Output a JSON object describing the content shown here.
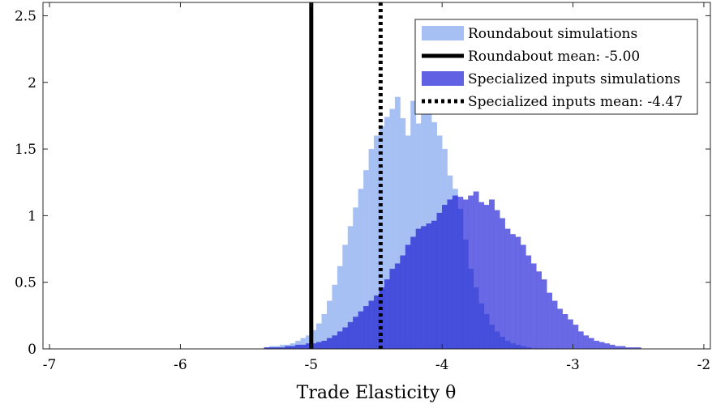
{
  "chart_data": {
    "type": "bar",
    "xlabel": "Trade Elasticity θ",
    "ylabel": "",
    "xlim": [
      -7.05,
      -1.95
    ],
    "ylim": [
      0,
      2.6
    ],
    "x_ticks": [
      -7,
      -6,
      -5,
      -4,
      -3,
      -2
    ],
    "y_ticks": [
      0,
      0.5,
      1,
      1.5,
      2,
      2.5
    ],
    "x_tick_labels": [
      "-7",
      "-6",
      "-5",
      "-4",
      "-3",
      "-2"
    ],
    "y_tick_labels": [
      "0",
      "0.5",
      "1",
      "1.5",
      "2",
      "2.5"
    ],
    "grid": false,
    "legend_position": "top-right",
    "series": [
      {
        "name": "Roundabout simulations",
        "kind": "histogram",
        "color": "#a7c0f4",
        "bin_width": 0.04,
        "bin_start": -6.0,
        "values": [
          0.0,
          0.0,
          0.0,
          0.0,
          0.0,
          0.0,
          0.0,
          0.0,
          0.0,
          0.0,
          0.0,
          0.0,
          0.0,
          0.0,
          0.0,
          0.0,
          0.01,
          0.02,
          0.02,
          0.03,
          0.03,
          0.04,
          0.06,
          0.08,
          0.1,
          0.14,
          0.19,
          0.26,
          0.36,
          0.48,
          0.62,
          0.78,
          0.92,
          1.06,
          1.2,
          1.34,
          1.5,
          1.6,
          1.67,
          1.74,
          1.8,
          1.89,
          1.73,
          1.6,
          1.86,
          1.69,
          1.79,
          1.87,
          1.7,
          1.6,
          1.5,
          1.3,
          1.2,
          1.05,
          0.82,
          0.6,
          0.46,
          0.34,
          0.26,
          0.18,
          0.13,
          0.09,
          0.06,
          0.04,
          0.03,
          0.02,
          0.01,
          0.0
        ]
      },
      {
        "name": "Roundabout mean: -5.00",
        "kind": "vline",
        "x": -5.0,
        "color": "#000000",
        "style": "solid"
      },
      {
        "name": "Specialized inputs simulations",
        "kind": "histogram",
        "color": "#6161e4",
        "bin_width": 0.04,
        "bin_start": -6.0,
        "values": [
          0.0,
          0.0,
          0.0,
          0.0,
          0.0,
          0.0,
          0.0,
          0.0,
          0.0,
          0.0,
          0.0,
          0.0,
          0.0,
          0.0,
          0.0,
          0.0,
          0.01,
          0.01,
          0.01,
          0.01,
          0.02,
          0.02,
          0.03,
          0.03,
          0.04,
          0.04,
          0.05,
          0.06,
          0.08,
          0.1,
          0.13,
          0.16,
          0.2,
          0.24,
          0.28,
          0.32,
          0.36,
          0.4,
          0.46,
          0.52,
          0.6,
          0.64,
          0.7,
          0.78,
          0.84,
          0.9,
          0.92,
          0.94,
          0.96,
          1.02,
          1.08,
          1.12,
          1.15,
          1.14,
          1.12,
          1.15,
          1.18,
          1.1,
          1.08,
          1.12,
          1.04,
          0.98,
          0.9,
          0.86,
          0.84,
          0.78,
          0.7,
          0.64,
          0.58,
          0.52,
          0.42,
          0.36,
          0.3,
          0.26,
          0.22,
          0.18,
          0.13,
          0.1,
          0.08,
          0.06,
          0.05,
          0.04,
          0.03,
          0.02,
          0.02,
          0.01,
          0.01,
          0.01,
          0.0,
          0.0,
          0.0,
          0.0,
          0.0,
          0.0,
          0.0,
          0.0,
          0.0
        ]
      },
      {
        "name": "Specialized inputs mean: -4.47",
        "kind": "vline",
        "x": -4.47,
        "color": "#000000",
        "style": "dotted"
      }
    ]
  }
}
